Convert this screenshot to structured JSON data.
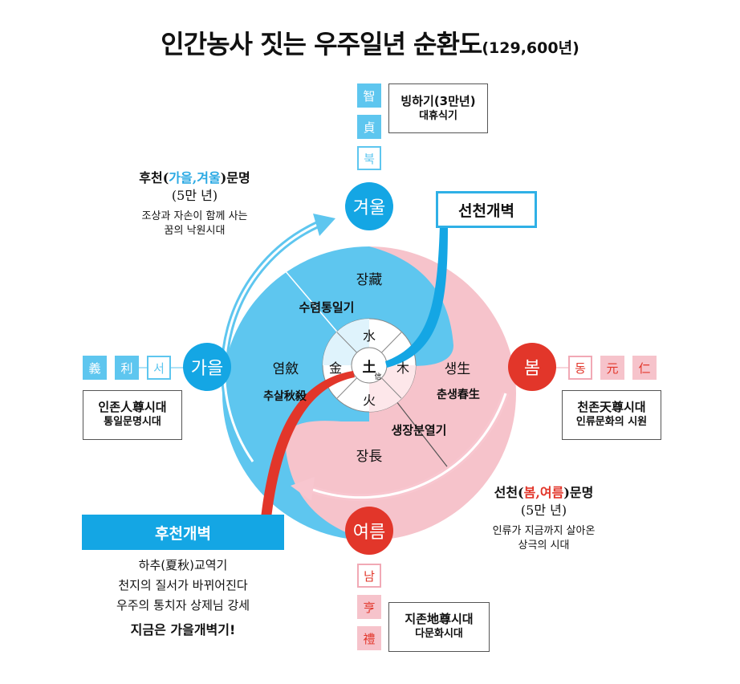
{
  "title": {
    "main": "인간농사 짓는 우주일년 순환도",
    "sub": "(129,600년)"
  },
  "colors": {
    "blue": "#5ec6ef",
    "blue_dark": "#14a6e4",
    "pink": "#f6c3cb",
    "red": "#e2362a",
    "light_blue": "#89d3f4",
    "light_pink": "#f8c6cf"
  },
  "top_chars": [
    "智",
    "貞",
    "북"
  ],
  "top_box": {
    "l1": "빙하기(3만년)",
    "l2": "대휴식기"
  },
  "left_chars": [
    "義",
    "利",
    "서"
  ],
  "left_box": {
    "l1": "인존人尊시대",
    "l2": "통일문명시대"
  },
  "right_chars": [
    "동",
    "元",
    "仁"
  ],
  "right_box": {
    "l1": "천존天尊시대",
    "l2": "인류문화의 시원"
  },
  "bottom_chars": [
    "남",
    "亨",
    "禮"
  ],
  "bottom_box": {
    "l1": "지존地尊시대",
    "l2": "다문화시대"
  },
  "seasons": {
    "winter": "겨울",
    "autumn": "가을",
    "spring": "봄",
    "summer": "여름"
  },
  "circle": {
    "jang_top": "장藏",
    "autumn_label": "수렴통일기",
    "yeom": "염斂",
    "chusal": "추살秋殺",
    "saeng": "생生",
    "chunsaeng": "춘생春生",
    "summer_label": "생장분열기",
    "jang_bottom": "장長",
    "water": "水",
    "fire": "火",
    "metal": "金",
    "wood": "木",
    "earth": "土",
    "trust": "信"
  },
  "later_civ": {
    "prefix": "후천(",
    "seasons": "가을,겨울",
    "suffix": ")문명",
    "years": "(5만 년)",
    "desc1": "조상과 자손이 함께 사는",
    "desc2": "꿈의 낙원시대"
  },
  "earlier_civ": {
    "prefix": "선천(",
    "seasons": "봄,여름",
    "suffix": ")문명",
    "years": "(5만 년)",
    "desc1": "인류가 지금까지 살아온",
    "desc2": "상극의 시대"
  },
  "banner_seon": "선천개벽",
  "banner_hu": "후천개벽",
  "bottom_lines": [
    "하추(夏秋)교역기",
    "천지의 질서가 바뀌어진다",
    "우주의 통치자 상제님 강세",
    "지금은 가을개벽기!"
  ]
}
